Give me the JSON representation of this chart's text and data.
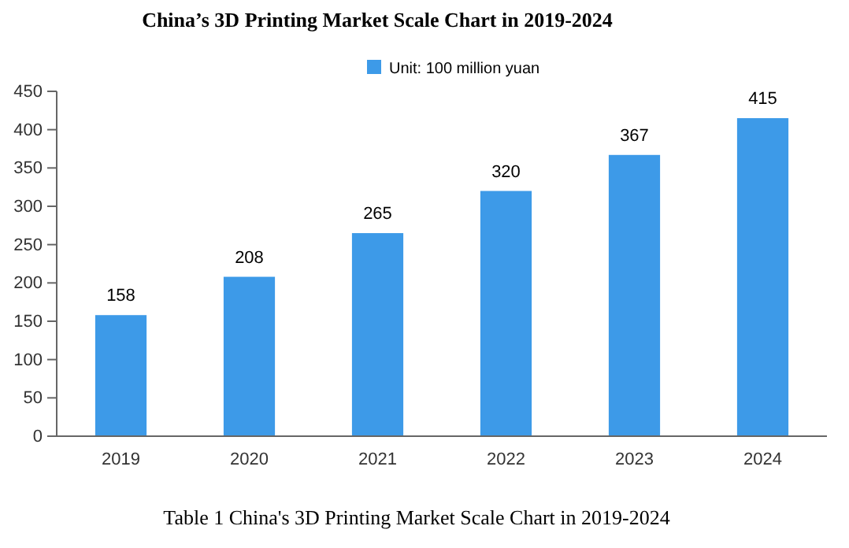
{
  "chart_data": {
    "type": "bar",
    "title": "China’s 3D Printing Market Scale Chart in 2019-2024",
    "categories": [
      "2019",
      "2020",
      "2021",
      "2022",
      "2023",
      "2024"
    ],
    "series": [
      {
        "name": "Unit: 100 million yuan",
        "color": "#3d9ae8",
        "values": [
          158,
          208,
          265,
          320,
          367,
          415
        ]
      }
    ],
    "ylim": [
      0,
      450
    ],
    "yticks": [
      0,
      50,
      100,
      150,
      200,
      250,
      300,
      350,
      400,
      450
    ],
    "data_labels": true,
    "legend": "top",
    "annotations": [
      "Table 1 China's 3D Printing Market Scale Chart in 2019-2024"
    ]
  }
}
